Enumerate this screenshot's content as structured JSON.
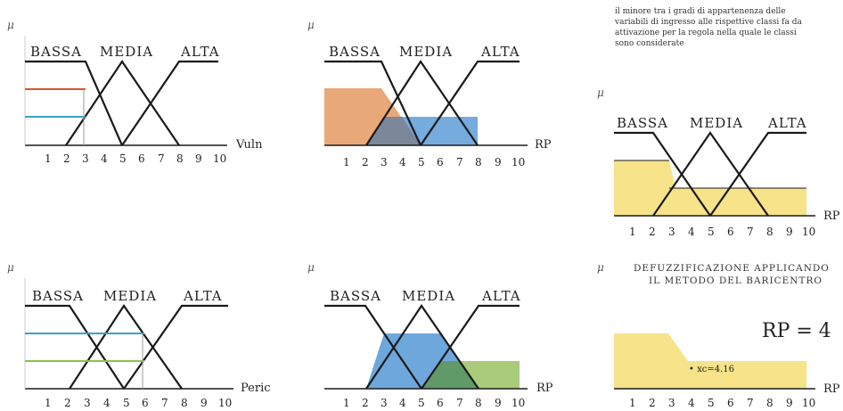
{
  "sets": [
    "BASSA",
    "MEDIA",
    "ALTA"
  ],
  "mu_symbol": "μ",
  "ticks_full": [
    "1",
    "2",
    "3",
    "4",
    "5",
    "6",
    "7",
    "8",
    "9",
    "10"
  ],
  "ticks_p1": [
    "1",
    "2",
    "3",
    "4",
    "5",
    "6",
    "7",
    "8",
    "9",
    "10"
  ],
  "panels": {
    "p1": {
      "axis_label": "Vuln"
    },
    "p2": {
      "axis_label": "RP"
    },
    "p3": {
      "axis_label": "RP"
    },
    "p4": {
      "axis_label": "Peric"
    },
    "p5": {
      "axis_label": "RP"
    },
    "p6": {
      "axis_label": "RP"
    }
  },
  "note_lines": [
    "il minore tra i gradi di appartenenza delle",
    "variabili di ingresso alle rispettive classi fa da",
    "attivazione per la regola nella quale le classi",
    "sono considerate"
  ],
  "defuzz_lines": [
    "DEFUZZIFICAZIONE APPLICANDO",
    "IL METODO DEL BARICENTRO"
  ],
  "result": "RP = 4",
  "centroid_label": "• xc=4.16",
  "colors": {
    "line": "#1a1a1a",
    "red": "#d2582c",
    "blue": "#3aa0c8",
    "green": "#8cc04a",
    "orange_fill": "#e9a877",
    "blue_fill": "#6ea7db",
    "gray_fill": "#7d879a",
    "dkgreen_fill": "#5f9a68",
    "ltgreen_fill": "#a9cb7a",
    "yellow_fill": "#f6e38a"
  }
}
